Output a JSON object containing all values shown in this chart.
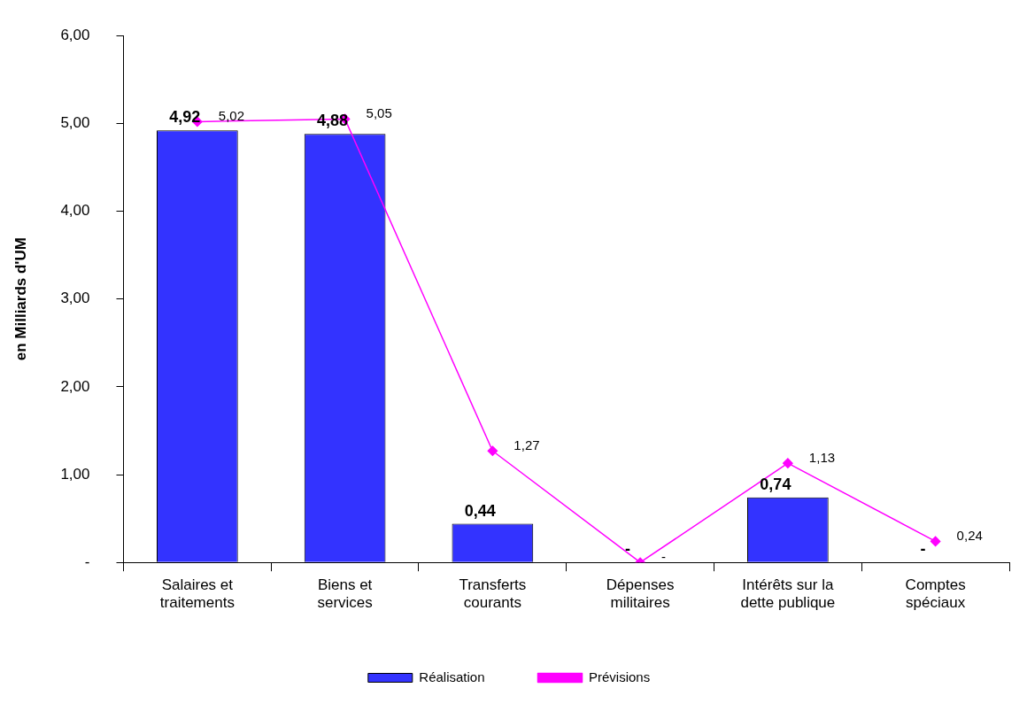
{
  "chart_data": {
    "type": "bar",
    "ylabel": "en Milliards d'UM",
    "categories": [
      "Salaires et traitements",
      "Biens et services",
      "Transferts courants",
      "Dépenses militaires",
      "Intérêts sur la dette publique",
      "Comptes spéciaux"
    ],
    "series": [
      {
        "name": "Réalisation",
        "color": "#3333ff",
        "values": [
          4.92,
          4.88,
          0.44,
          0,
          0.74,
          0
        ],
        "value_labels": [
          "4,92",
          "4,88",
          "0,44",
          "-",
          "0,74",
          "-"
        ]
      },
      {
        "name": "Prévisions",
        "type": "line",
        "color": "#ff00ff",
        "marker": "diamond",
        "values": [
          5.02,
          5.05,
          1.27,
          0,
          1.13,
          0.24
        ],
        "value_labels": [
          "5,02",
          "5,05",
          "1,27",
          "-",
          "1,13",
          "0,24"
        ]
      }
    ],
    "ylim": [
      0,
      6
    ],
    "yticks": [
      {
        "value": 0,
        "label": "-"
      },
      {
        "value": 1,
        "label": "1,00"
      },
      {
        "value": 2,
        "label": "2,00"
      },
      {
        "value": 3,
        "label": "3,00"
      },
      {
        "value": 4,
        "label": "4,00"
      },
      {
        "value": 5,
        "label": "5,00"
      },
      {
        "value": 6,
        "label": "6,00"
      }
    ],
    "grid": false,
    "legend": "bottom"
  }
}
